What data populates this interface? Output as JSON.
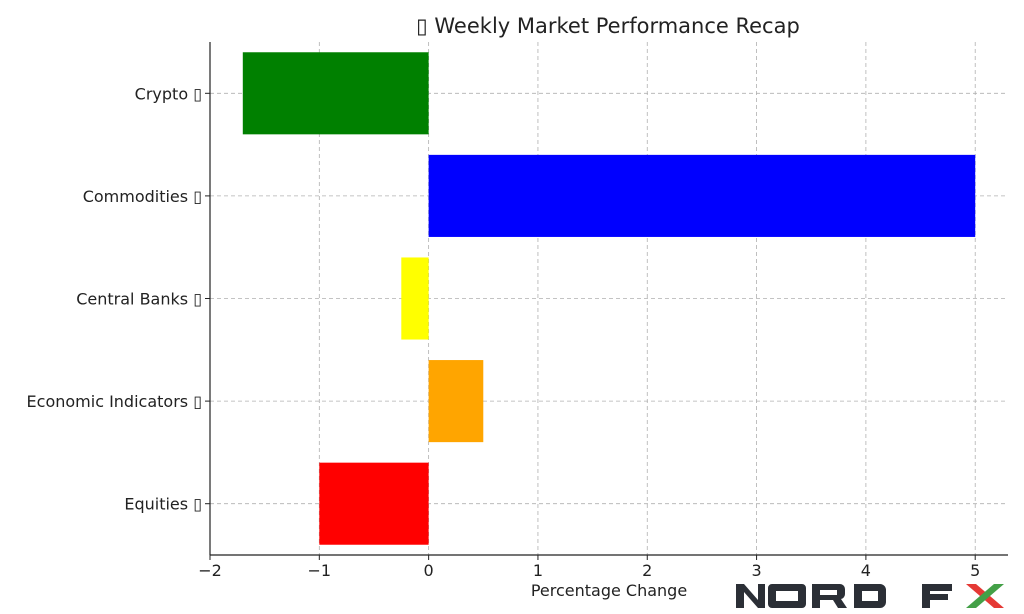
{
  "chart_data": {
    "type": "bar",
    "orientation": "horizontal",
    "title": "▯ Weekly Market Performance Recap",
    "xlabel": "Percentage Change",
    "ylabel": "",
    "categories": [
      "Equities ▯",
      "Economic Indicators ▯",
      "Central Banks ▯",
      "Commodities ▯",
      "Crypto ▯"
    ],
    "values": [
      -1.0,
      0.5,
      -0.25,
      5.0,
      -1.7
    ],
    "colors": [
      "#ff0000",
      "#ffa500",
      "#ffff00",
      "#0000ff",
      "#008000"
    ],
    "xlim": [
      -2.0,
      5.3
    ],
    "xticks": [
      -2,
      -1,
      0,
      1,
      2,
      3,
      4,
      5
    ],
    "xtick_labels": [
      "−2",
      "−1",
      "0",
      "1",
      "2",
      "3",
      "4",
      "5"
    ],
    "grid": true,
    "legend": "none"
  },
  "logo": {
    "text": "NORD FX",
    "mark_colors": [
      "#e53935",
      "#43a047"
    ]
  }
}
